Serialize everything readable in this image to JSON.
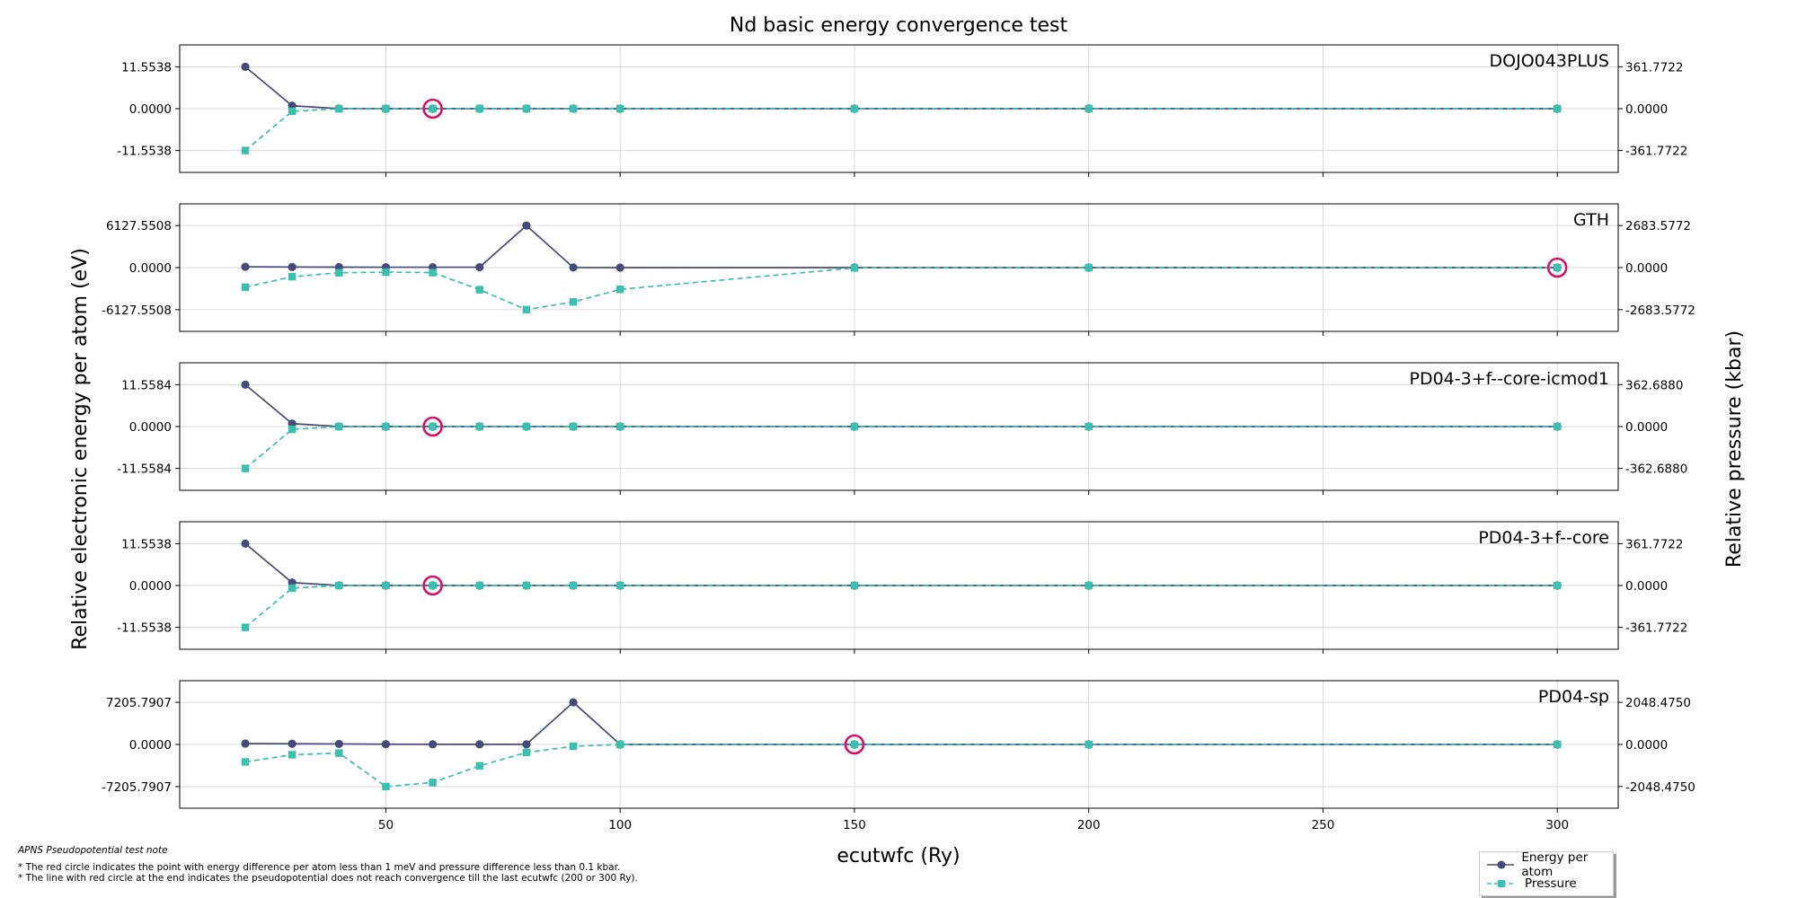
{
  "chart_data": {
    "type": "line",
    "title": "Nd basic energy convergence test",
    "xlabel": "ecutwfc (Ry)",
    "ylabel_left": "Relative electronic energy per atom (eV)",
    "ylabel_right": "Relative pressure (kbar)",
    "xlim": [
      6,
      313
    ],
    "x_ticks": [
      50,
      100,
      150,
      200,
      250,
      300
    ],
    "x": [
      20,
      30,
      40,
      50,
      60,
      70,
      80,
      90,
      100,
      150,
      200,
      300
    ],
    "colors": {
      "energy": "#454a7a",
      "pressure": "#3bbfae",
      "circle": "#d6106a"
    },
    "series_names": {
      "energy": "Energy per atom",
      "pressure": "Pressure"
    },
    "legend_position": "lower-right",
    "grid": true,
    "panels": [
      {
        "label": "DOJO043PLUS",
        "energy_ticks": [
          "11.5538",
          "0.0000",
          "-11.5538"
        ],
        "energy_tick_values": [
          11.5538,
          0,
          -11.5538
        ],
        "energy_lim": [
          -17.6,
          17.6
        ],
        "pressure_ticks": [
          "361.7722",
          "0.0000",
          "-361.7722"
        ],
        "pressure_tick_values": [
          361.7722,
          0,
          -361.7722
        ],
        "pressure_lim": [
          -551,
          551
        ],
        "energy": [
          11.5538,
          0.8,
          0.02,
          0,
          0,
          0,
          0,
          0,
          0,
          0,
          0,
          0
        ],
        "pressure": [
          -361.7722,
          -23,
          -1,
          0,
          0,
          0,
          0,
          0,
          0,
          0,
          0,
          0
        ],
        "converged_x": 60
      },
      {
        "label": "GTH",
        "energy_ticks": [
          "6127.5508",
          "0.0000",
          "-6127.5508"
        ],
        "energy_tick_values": [
          6127.5508,
          0,
          -6127.5508
        ],
        "energy_lim": [
          -9290,
          9290
        ],
        "pressure_ticks": [
          "2683.5772",
          "0.0000",
          "-2683.5772"
        ],
        "pressure_tick_values": [
          2683.5772,
          0,
          -2683.5772
        ],
        "pressure_lim": [
          -4070,
          4070
        ],
        "energy": [
          120,
          90,
          70,
          60,
          60,
          60,
          6127.5508,
          20,
          0,
          0,
          0,
          0
        ],
        "pressure": [
          -1250,
          -580,
          -330,
          -290,
          -320,
          -1410,
          -2683.5772,
          -2190,
          -1390,
          -20,
          0,
          0
        ],
        "converged_x": 300
      },
      {
        "label": "PD04-3+f--core-icmod1",
        "energy_ticks": [
          "11.5584",
          "0.0000",
          "-11.5584"
        ],
        "energy_tick_values": [
          11.5584,
          0,
          -11.5584
        ],
        "energy_lim": [
          -17.6,
          17.6
        ],
        "pressure_ticks": [
          "362.6880",
          "0.0000",
          "-362.6880"
        ],
        "pressure_tick_values": [
          362.688,
          0,
          -362.688
        ],
        "pressure_lim": [
          -552,
          552
        ],
        "energy": [
          11.5584,
          0.8,
          0.02,
          0,
          0,
          0,
          0,
          0,
          0,
          0,
          0,
          0
        ],
        "pressure": [
          -362.688,
          -24,
          -1,
          0,
          0,
          0,
          0,
          0,
          0,
          0,
          0,
          0
        ],
        "converged_x": 60
      },
      {
        "label": "PD04-3+f--core",
        "energy_ticks": [
          "11.5538",
          "0.0000",
          "-11.5538"
        ],
        "energy_tick_values": [
          11.5538,
          0,
          -11.5538
        ],
        "energy_lim": [
          -17.6,
          17.6
        ],
        "pressure_ticks": [
          "361.7722",
          "0.0000",
          "-361.7722"
        ],
        "pressure_tick_values": [
          361.7722,
          0,
          -361.7722
        ],
        "pressure_lim": [
          -551,
          551
        ],
        "energy": [
          11.5538,
          0.8,
          0.02,
          0,
          0,
          0,
          0,
          0,
          0,
          0,
          0,
          0
        ],
        "pressure": [
          -361.7722,
          -23,
          -1,
          0,
          0,
          0,
          0,
          0,
          0,
          0,
          0,
          0
        ],
        "converged_x": 60
      },
      {
        "label": "PD04-sp",
        "energy_ticks": [
          "7205.7907",
          "0.0000",
          "-7205.7907"
        ],
        "energy_tick_values": [
          7205.7907,
          0,
          -7205.7907
        ],
        "energy_lim": [
          -10900,
          10900
        ],
        "pressure_ticks": [
          "2048.4750",
          "0.0000",
          "-2048.4750"
        ],
        "pressure_tick_values": [
          2048.475,
          0,
          -2048.475
        ],
        "pressure_lim": [
          -3100,
          3100
        ],
        "energy": [
          150,
          110,
          90,
          40,
          20,
          20,
          20,
          7205.7907,
          0,
          0,
          0,
          0
        ],
        "pressure": [
          -850,
          -500,
          -420,
          -2048.475,
          -1850,
          -1040,
          -390,
          -90,
          0,
          0,
          0,
          0
        ],
        "converged_x": 150
      }
    ]
  },
  "notes": {
    "heading": "APNS Pseudopotential test note",
    "line1": "* The red circle indicates the point with energy difference per atom less than 1 meV and pressure difference less than 0.1 kbar.",
    "line2": "* The line with red circle at the end indicates the pseudopotential does not reach convergence till the last ecutwfc (200 or 300 Ry)."
  }
}
